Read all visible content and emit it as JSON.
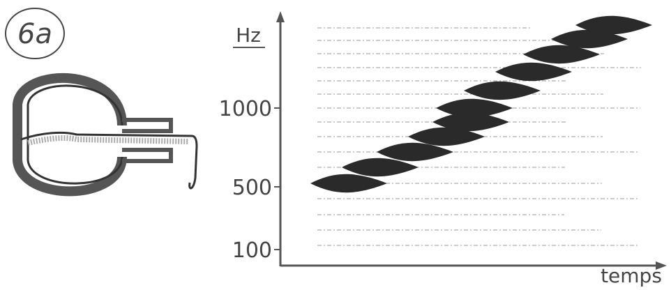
{
  "label": "6a",
  "y_axis": {
    "title": "Hz",
    "ticks": [
      "1000",
      "500",
      "100"
    ]
  },
  "x_axis": {
    "title": "temps"
  }
}
